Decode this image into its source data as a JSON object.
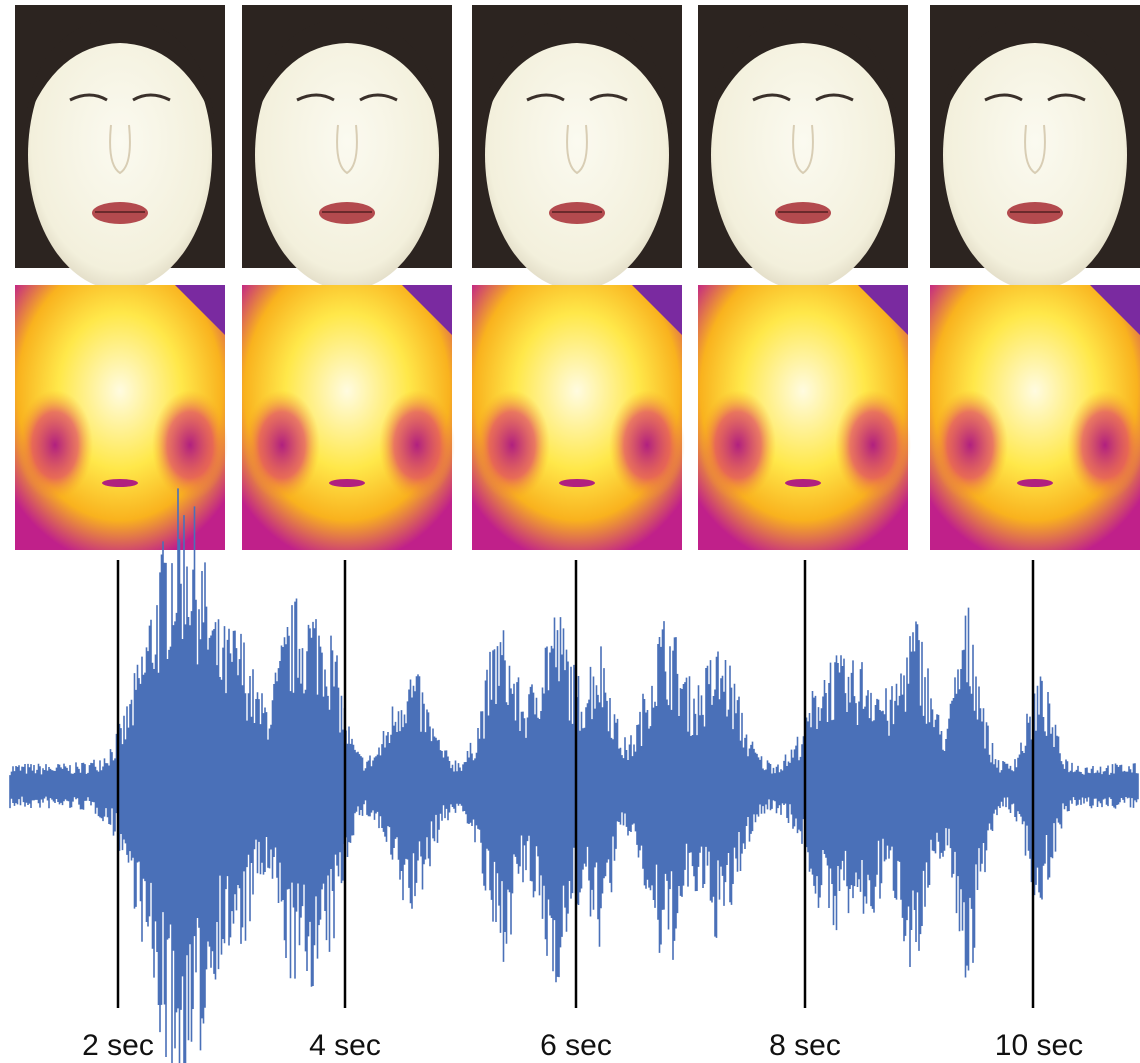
{
  "timeline": {
    "labels": [
      "2 sec",
      "4 sec",
      "6 sec",
      "8 sec",
      "10 sec"
    ]
  }
}
